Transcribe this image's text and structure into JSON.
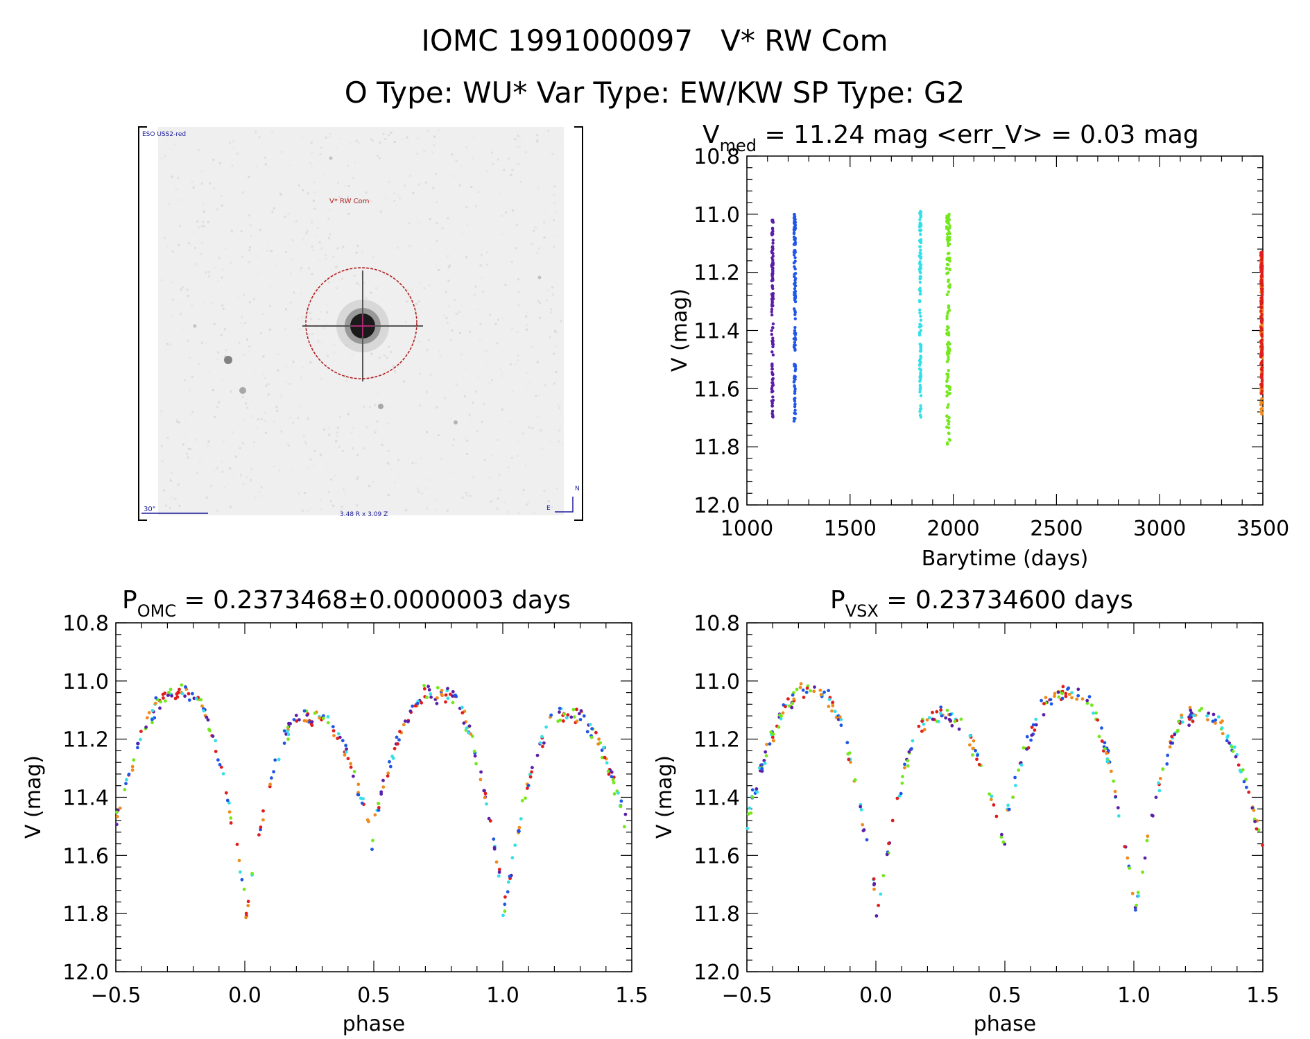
{
  "header": {
    "line1": "IOMC 1991000097   V* RW Com",
    "line2": "O Type: WU*  Var Type: EW/KW  SP Type: G2"
  },
  "finder": {
    "survey_label": "ESO USS2-red",
    "star_label": "V* RW Com",
    "scale_label": "30\"",
    "coords_label": "3.48 R x 3.09 Z",
    "north_label": "N",
    "east_label": "E"
  },
  "colors": {
    "violet": "#5a1fa8",
    "blue": "#1f56e6",
    "cyan": "#34e0e8",
    "green": "#73e81c",
    "orange": "#f08a1c",
    "red": "#e01c1c",
    "circle": "#b01e1e"
  },
  "panels": {
    "lc": {
      "title_main": "V",
      "title_sub": "med",
      "title_rest": " = 11.24 mag <err_V> = 0.03 mag",
      "xlabel": "Barytime (days)",
      "ylabel": "V (mag)"
    },
    "pomc": {
      "title_main": "P",
      "title_sub": "OMC",
      "title_rest": " = 0.2373468±0.0000003 days",
      "xlabel": "phase",
      "ylabel": "V (mag)"
    },
    "pvsx": {
      "title_main": "P",
      "title_sub": "VSX",
      "title_rest": " = 0.23734600 days",
      "xlabel": "phase",
      "ylabel": "V (mag)"
    }
  },
  "chart_data": [
    {
      "type": "scatter",
      "id": "lc",
      "title": "V_med = 11.24 mag <err_V> = 0.03 mag",
      "xlabel": "Barytime (days)",
      "ylabel": "V (mag)",
      "xlim": [
        1000,
        3500
      ],
      "ylim": [
        12.0,
        10.8
      ],
      "y_inverted": true,
      "xticks": [
        1000,
        1500,
        2000,
        2500,
        3000,
        3500
      ],
      "xtick_labels": [
        "1000",
        "1500",
        "2000",
        "2500",
        "3000",
        "3500"
      ],
      "yticks": [
        10.8,
        11.0,
        11.2,
        11.4,
        11.6,
        11.8,
        12.0
      ],
      "ytick_labels": [
        "10.8",
        "11.0",
        "11.2",
        "11.4",
        "11.6",
        "11.8",
        "12.0"
      ],
      "series": [
        {
          "color": "violet",
          "x_range": [
            1120,
            1128
          ],
          "v_range": [
            11.02,
            11.7
          ]
        },
        {
          "color": "blue",
          "x_range": [
            1228,
            1236
          ],
          "v_range": [
            11.0,
            11.72
          ]
        },
        {
          "color": "cyan",
          "x_range": [
            1836,
            1844
          ],
          "v_range": [
            10.99,
            11.7
          ]
        },
        {
          "color": "green",
          "x_range": [
            1968,
            1984
          ],
          "v_range": [
            11.0,
            11.82
          ]
        },
        {
          "color": "orange",
          "x_range": [
            3490,
            3498
          ],
          "v_range": [
            11.14,
            11.71
          ]
        },
        {
          "color": "red",
          "x_range": [
            3490,
            3498
          ],
          "v_range": [
            11.13,
            11.62
          ]
        }
      ]
    },
    {
      "type": "scatter",
      "id": "pomc",
      "title": "P_OMC = 0.2373468±0.0000003 days",
      "xlabel": "phase",
      "ylabel": "V (mag)",
      "xlim": [
        -0.5,
        1.5
      ],
      "ylim": [
        12.0,
        10.8
      ],
      "y_inverted": true,
      "xticks": [
        -0.5,
        0.0,
        0.5,
        1.0,
        1.5
      ],
      "xtick_labels": [
        "−0.5",
        "0.0",
        "0.5",
        "1.0",
        "1.5"
      ],
      "yticks": [
        10.8,
        11.0,
        11.2,
        11.4,
        11.6,
        11.8,
        12.0
      ],
      "ytick_labels": [
        "10.8",
        "11.0",
        "11.2",
        "11.4",
        "11.6",
        "11.8",
        "12.0"
      ],
      "light_curve": {
        "max_mag": 11.04,
        "secondary_max_mag": 11.12,
        "primary_min_mag": 11.74,
        "secondary_min_mag": 11.57,
        "primary_min_phase": 0.0,
        "secondary_min_phase": 0.5,
        "scatter_mag": 0.05
      },
      "colors": [
        "violet",
        "blue",
        "cyan",
        "green",
        "orange",
        "red"
      ]
    },
    {
      "type": "scatter",
      "id": "pvsx",
      "title": "P_VSX = 0.23734600 days",
      "xlabel": "phase",
      "ylabel": "V (mag)",
      "xlim": [
        -0.5,
        1.5
      ],
      "ylim": [
        12.0,
        10.8
      ],
      "y_inverted": true,
      "xticks": [
        -0.5,
        0.0,
        0.5,
        1.0,
        1.5
      ],
      "xtick_labels": [
        "−0.5",
        "0.0",
        "0.5",
        "1.0",
        "1.5"
      ],
      "yticks": [
        10.8,
        11.0,
        11.2,
        11.4,
        11.6,
        11.8,
        12.0
      ],
      "ytick_labels": [
        "10.8",
        "11.0",
        "11.2",
        "11.4",
        "11.6",
        "11.8",
        "12.0"
      ],
      "light_curve": {
        "max_mag": 11.04,
        "secondary_max_mag": 11.12,
        "primary_min_mag": 11.74,
        "secondary_min_mag": 11.57,
        "primary_min_phase": 0.0,
        "secondary_min_phase": 0.5,
        "scatter_mag": 0.05
      },
      "colors": [
        "violet",
        "blue",
        "cyan",
        "green",
        "orange",
        "red"
      ]
    }
  ]
}
